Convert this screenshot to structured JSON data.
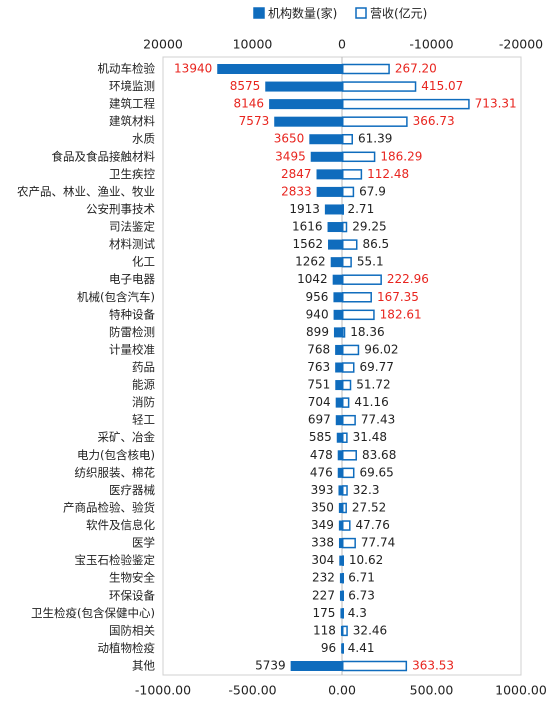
{
  "chart_data": {
    "type": "butterfly-bar",
    "categories": [
      "机动车检验",
      "环境监测",
      "建筑工程",
      "建筑材料",
      "水质",
      "食品及食品接触材料",
      "卫生疾控",
      "农产品、林业、渔业、牧业",
      "公安刑事技术",
      "司法鉴定",
      "材料测试",
      "化工",
      "电子电器",
      "机械(包含汽车)",
      "特种设备",
      "防雷检测",
      "计量校准",
      "药品",
      "能源",
      "消防",
      "轻工",
      "采矿、冶金",
      "电力(包含核电)",
      "纺织服装、棉花",
      "医疗器械",
      "产商品检验、验货",
      "软件及信息化",
      "医学",
      "宝玉石检验鉴定",
      "生物安全",
      "环保设备",
      "卫生检疫(包含保健中心)",
      "国防相关",
      "动植物检疫",
      "其他"
    ],
    "series": [
      {
        "name": "机构数量(家)",
        "color": "#0f6cbd",
        "axis": "x2",
        "hollow": false,
        "values": [
          13940,
          8575,
          8146,
          7573,
          3650,
          3495,
          2847,
          2833,
          1913,
          1616,
          1562,
          1262,
          1042,
          956,
          940,
          899,
          768,
          763,
          751,
          704,
          697,
          585,
          478,
          476,
          393,
          350,
          349,
          338,
          304,
          232,
          227,
          175,
          118,
          96,
          5739
        ],
        "label_colors": [
          "#e8251f",
          "#e8251f",
          "#e8251f",
          "#e8251f",
          "#e8251f",
          "#e8251f",
          "#e8251f",
          "#e8251f",
          "#222",
          "#222",
          "#222",
          "#222",
          "#222",
          "#222",
          "#222",
          "#222",
          "#222",
          "#222",
          "#222",
          "#222",
          "#222",
          "#222",
          "#222",
          "#222",
          "#222",
          "#222",
          "#222",
          "#222",
          "#222",
          "#222",
          "#222",
          "#222",
          "#222",
          "#222",
          "#222"
        ]
      },
      {
        "name": "营收(亿元)",
        "color": "#0f6cbd",
        "axis": "x",
        "hollow": true,
        "values": [
          267.2,
          415.07,
          713.31,
          366.73,
          61.39,
          186.29,
          112.48,
          67.9,
          2.71,
          29.25,
          86.5,
          55.1,
          222.96,
          167.35,
          182.61,
          18.36,
          96.02,
          69.77,
          51.72,
          41.16,
          77.43,
          31.48,
          83.68,
          69.65,
          32.3,
          27.52,
          47.76,
          77.74,
          10.62,
          6.71,
          6.73,
          4.3,
          32.46,
          4.41,
          363.53
        ],
        "value_labels": [
          "267.20",
          "415.07",
          "713.31",
          "366.73",
          "61.39",
          "186.29",
          "112.48",
          "67.9",
          "2.71",
          "29.25",
          "86.5",
          "55.1",
          "222.96",
          "167.35",
          "182.61",
          "18.36",
          "96.02",
          "69.77",
          "51.72",
          "41.16",
          "77.43",
          "31.48",
          "83.68",
          "69.65",
          "32.3",
          "27.52",
          "47.76",
          "77.74",
          "10.62",
          "6.71",
          "6.73",
          "4.3",
          "32.46",
          "4.41",
          "363.53"
        ],
        "label_colors": [
          "#e8251f",
          "#e8251f",
          "#e8251f",
          "#e8251f",
          "#222",
          "#e8251f",
          "#e8251f",
          "#222",
          "#222",
          "#222",
          "#222",
          "#222",
          "#e8251f",
          "#e8251f",
          "#e8251f",
          "#222",
          "#222",
          "#222",
          "#222",
          "#222",
          "#222",
          "#222",
          "#222",
          "#222",
          "#222",
          "#222",
          "#222",
          "#222",
          "#222",
          "#222",
          "#222",
          "#222",
          "#222",
          "#222",
          "#e8251f"
        ]
      }
    ],
    "x2lim": [
      20000,
      -20000
    ],
    "x2ticks": [
      20000,
      10000,
      0,
      -10000,
      -20000
    ],
    "xlim": [
      -1000,
      1000
    ],
    "xticks": [
      {
        "value": -1000,
        "label": "-1000.00"
      },
      {
        "value": -500,
        "label": "-500.00"
      },
      {
        "value": 0,
        "label": "0.00"
      },
      {
        "value": 500,
        "label": "500.00"
      },
      {
        "value": 1000,
        "label": "1000.00"
      }
    ]
  }
}
